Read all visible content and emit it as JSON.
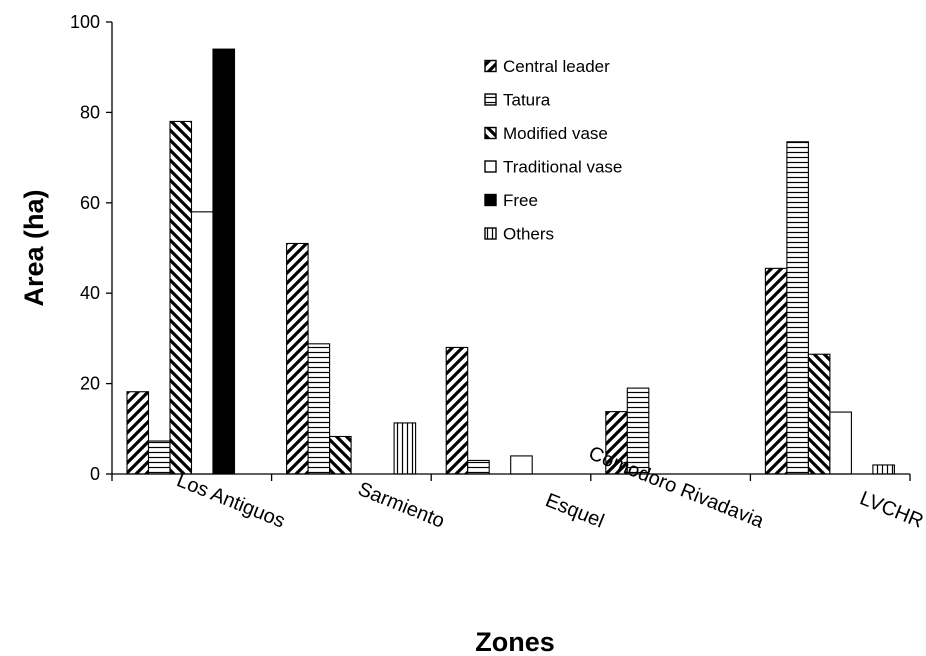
{
  "chart_data": {
    "type": "bar",
    "title": "",
    "xlabel": "Zones",
    "ylabel": "Area (ha)",
    "ylim": [
      0,
      100
    ],
    "yticks": [
      0,
      20,
      40,
      60,
      80,
      100
    ],
    "grid": false,
    "legend_position": "top-right",
    "categories": [
      "Los Antiguos",
      "Sarmiento",
      "Esquel",
      "Comodoro Rivadavia",
      "LVCHR"
    ],
    "series": [
      {
        "name": "Central leader",
        "pattern": "diagonal-up",
        "values": [
          18.2,
          51,
          28,
          13.8,
          45.5
        ]
      },
      {
        "name": "Tatura",
        "pattern": "horizontal",
        "values": [
          7.3,
          28.8,
          3,
          19,
          73.5
        ]
      },
      {
        "name": "Modified vase",
        "pattern": "diagonal-down",
        "values": [
          78,
          8.3,
          0,
          0,
          26.5
        ]
      },
      {
        "name": "Traditional vase",
        "pattern": "white",
        "values": [
          58,
          0,
          4,
          0,
          13.7
        ]
      },
      {
        "name": "Free",
        "pattern": "solid-black",
        "values": [
          94,
          0,
          0,
          0,
          0
        ]
      },
      {
        "name": "Others",
        "pattern": "vertical",
        "values": [
          0,
          11.3,
          0,
          0,
          2
        ]
      }
    ]
  }
}
